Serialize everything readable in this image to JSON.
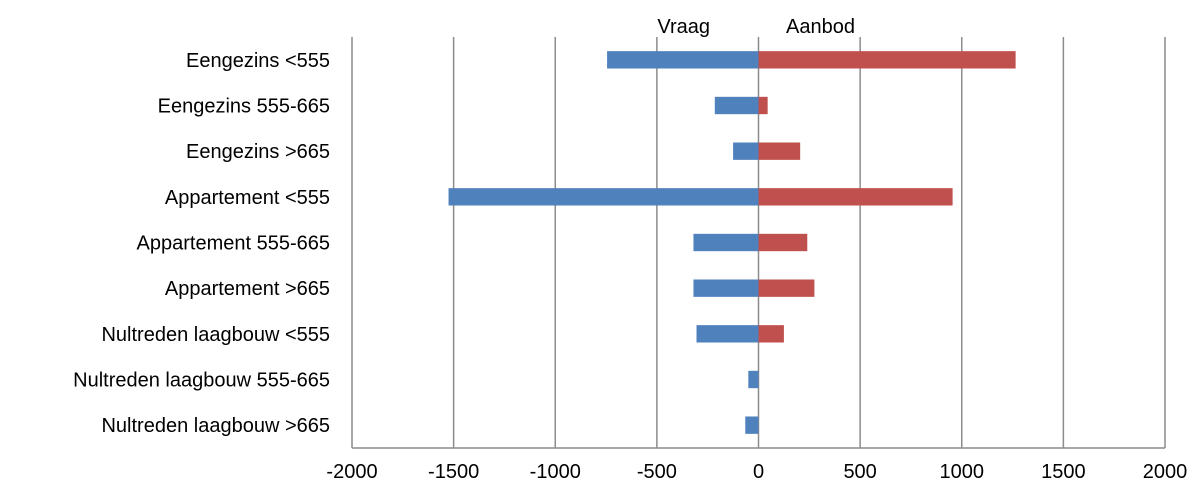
{
  "chart_data": {
    "type": "bar",
    "orientation": "horizontal",
    "categories": [
      "Eengezins <555",
      "Eengezins 555-665",
      "Eengezins >665",
      "Appartement  <555",
      "Appartement  555-665",
      "Appartement  >665",
      "Nultreden laagbouw <555",
      "Nultreden laagbouw 555-665",
      "Nultreden laagbouw >665"
    ],
    "series": [
      {
        "name": "Vraag",
        "color": "#4f81bd",
        "values": [
          -745,
          -215,
          -125,
          -1525,
          -320,
          -320,
          -305,
          -50,
          -65
        ]
      },
      {
        "name": "Aanbod",
        "color": "#c0504d",
        "values": [
          1265,
          45,
          205,
          955,
          240,
          275,
          125,
          0,
          0
        ]
      }
    ],
    "xlim": [
      -2000,
      2000
    ],
    "xticks": [
      "-2000",
      "-1500",
      "-1000",
      "-500",
      "0",
      "500",
      "1000",
      "1500",
      "2000"
    ],
    "grid": true,
    "stacked": true
  }
}
